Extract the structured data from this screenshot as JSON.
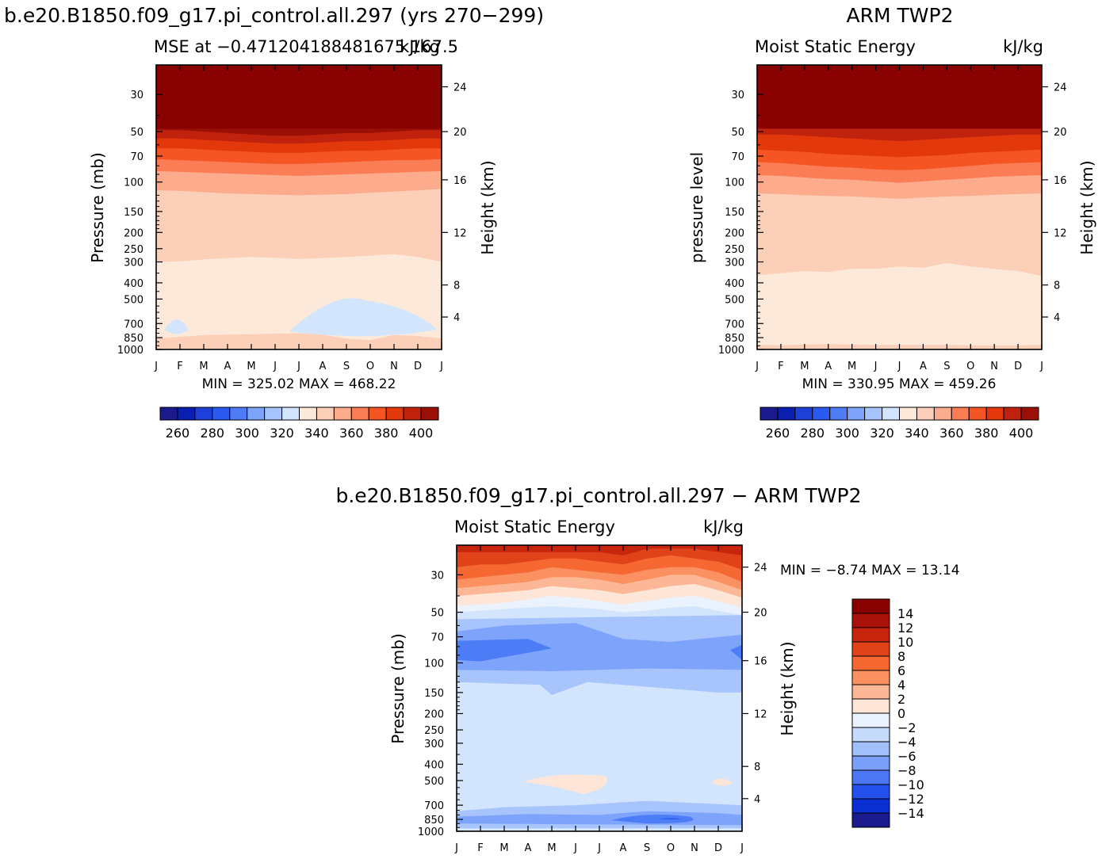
{
  "chart_data": [
    {
      "type": "heatmap",
      "title": "b.e20.B1850.f09_g17.pi_control.all.297 (yrs 270−299)",
      "subtitle_left": "MSE at −0.471204188481675 167.5",
      "subtitle_right": "kJ/kg",
      "ylabel": "Pressure (mb)",
      "ylabel_right": "Height (km)",
      "x_ticks": [
        "J",
        "F",
        "M",
        "A",
        "M",
        "J",
        "J",
        "A",
        "S",
        "O",
        "N",
        "D",
        "J"
      ],
      "y_ticks": [
        "30",
        "50",
        "70",
        "100",
        "150",
        "200",
        "250",
        "300",
        "400",
        "500",
        "700",
        "850",
        "1000"
      ],
      "y_ticks_right": [
        "24",
        "20",
        "16",
        "12",
        "8",
        "4"
      ],
      "minmax": "MIN = 325.02  MAX = 468.22",
      "colorbar_labels": [
        "260",
        "280",
        "300",
        "320",
        "340",
        "360",
        "380",
        "400"
      ],
      "ylim": [
        1000,
        20
      ],
      "contour_levels": [
        250,
        260,
        270,
        280,
        290,
        300,
        310,
        320,
        330,
        340,
        350,
        360,
        370,
        380,
        390,
        400
      ],
      "bands_by_month": [
        {
          "level": 330,
          "boundary_mb": [
            860,
            840,
            820,
            815,
            810,
            805,
            800,
            815,
            860,
            880,
            820,
            830,
            860
          ]
        },
        {
          "level": 340,
          "boundary_mb": [
            300,
            298,
            290,
            285,
            280,
            283,
            288,
            285,
            280,
            275,
            270,
            280,
            300
          ]
        },
        {
          "level": 350,
          "boundary_mb": [
            112,
            113,
            115,
            117,
            118,
            119,
            120,
            119,
            118,
            116,
            114,
            112,
            110
          ]
        },
        {
          "level": 360,
          "boundary_mb": [
            86,
            87,
            88,
            89,
            90,
            91,
            92,
            91,
            90,
            89,
            88,
            87,
            86
          ]
        },
        {
          "level": 370,
          "boundary_mb": [
            73,
            74,
            75,
            76,
            77,
            78,
            78,
            77,
            76,
            75,
            74,
            74,
            73
          ]
        },
        {
          "level": 380,
          "boundary_mb": [
            63,
            63,
            64,
            65,
            66,
            67,
            67,
            66,
            65,
            65,
            64,
            63,
            63
          ]
        },
        {
          "level": 390,
          "boundary_mb": [
            55,
            55,
            56,
            57,
            58,
            59,
            59,
            58,
            57,
            57,
            56,
            55,
            55
          ]
        },
        {
          "level": 400,
          "boundary_mb": [
            49,
            49,
            50,
            51,
            52,
            53,
            53,
            52,
            51,
            51,
            50,
            49,
            49
          ]
        }
      ]
    },
    {
      "type": "heatmap",
      "title": "ARM TWP2",
      "subtitle_left": "Moist Static Energy",
      "subtitle_right": "kJ/kg",
      "ylabel": "pressure level",
      "ylabel_right": "Height (km)",
      "x_ticks": [
        "J",
        "F",
        "M",
        "A",
        "M",
        "J",
        "J",
        "A",
        "S",
        "O",
        "N",
        "D",
        "J"
      ],
      "y_ticks": [
        "30",
        "50",
        "70",
        "100",
        "150",
        "200",
        "250",
        "300",
        "400",
        "500",
        "700",
        "850",
        "1000"
      ],
      "y_ticks_right": [
        "24",
        "20",
        "16",
        "12",
        "8",
        "4"
      ],
      "minmax": "MIN = 330.95  MAX = 459.26",
      "colorbar_labels": [
        "260",
        "280",
        "300",
        "320",
        "340",
        "360",
        "380",
        "400"
      ],
      "ylim": [
        1000,
        20
      ],
      "contour_levels": [
        250,
        260,
        270,
        280,
        290,
        300,
        310,
        320,
        330,
        340,
        350,
        360,
        370,
        380,
        390,
        400
      ],
      "bands_by_month": [
        {
          "level": 340,
          "boundary_mb": [
            940,
            945,
            935,
            930,
            935,
            940,
            940,
            940,
            940,
            945,
            945,
            945,
            940
          ]
        },
        {
          "level": 350,
          "boundary_mb": [
            360,
            350,
            340,
            345,
            330,
            330,
            320,
            325,
            305,
            320,
            330,
            340,
            365
          ]
        },
        {
          "level": 360,
          "boundary_mb": [
            117,
            118,
            120,
            121,
            122,
            124,
            126,
            124,
            122,
            121,
            119,
            118,
            117
          ]
        },
        {
          "level": 370,
          "boundary_mb": [
            91,
            92,
            94,
            96,
            97,
            99,
            101,
            99,
            97,
            95,
            93,
            92,
            91
          ]
        },
        {
          "level": 380,
          "boundary_mb": [
            76,
            77,
            79,
            81,
            82,
            84,
            85,
            84,
            82,
            80,
            78,
            77,
            76
          ]
        },
        {
          "level": 390,
          "boundary_mb": [
            64,
            65,
            66,
            68,
            69,
            70,
            71,
            70,
            69,
            67,
            66,
            65,
            64
          ]
        },
        {
          "level": 400,
          "boundary_mb": [
            52,
            52,
            53,
            54,
            55,
            56,
            57,
            56,
            55,
            54,
            53,
            52,
            52
          ]
        }
      ]
    },
    {
      "type": "heatmap",
      "title": "b.e20.B1850.f09_g17.pi_control.all.297 − ARM TWP2",
      "subtitle_left": "Moist Static Energy",
      "subtitle_right": "kJ/kg",
      "ylabel": "Pressure (mb)",
      "ylabel_right": "Height (km)",
      "x_ticks": [
        "J",
        "F",
        "M",
        "A",
        "M",
        "J",
        "J",
        "A",
        "S",
        "O",
        "N",
        "D",
        "J"
      ],
      "y_ticks": [
        "30",
        "50",
        "70",
        "100",
        "150",
        "200",
        "250",
        "300",
        "400",
        "500",
        "700",
        "850",
        "1000"
      ],
      "y_ticks_right": [
        "24",
        "20",
        "16",
        "12",
        "8",
        "4"
      ],
      "minmax": "MIN =   −8.74  MAX =   13.14",
      "colorbar_labels": [
        "14",
        "12",
        "10",
        "8",
        "6",
        "4",
        "2",
        "0",
        "−2",
        "−4",
        "−6",
        "−8",
        "−10",
        "−12",
        "−14"
      ],
      "ylim": [
        1000,
        20
      ],
      "contour_levels": [
        -15,
        -14,
        -12,
        -10,
        -8,
        -6,
        -4,
        -2,
        0,
        2,
        4,
        6,
        8,
        10,
        12,
        14
      ]
    }
  ],
  "colors": {
    "blue_scale": [
      "#1a1a8c",
      "#0a1fb0",
      "#1f40d8",
      "#2a5af0",
      "#4d7cf7",
      "#7ea3fb",
      "#a8c4fd",
      "#d2e5fc"
    ],
    "red_scale": [
      "#fde9d9",
      "#fcd0b8",
      "#fcab8c",
      "#fb7d55",
      "#f55523",
      "#e3380b",
      "#c0220e",
      "#9a1007",
      "#880000"
    ],
    "panel3_cb": [
      "#880000",
      "#a81208",
      "#c8250e",
      "#e0421a",
      "#f66832",
      "#fb9060",
      "#fcb896",
      "#fde6d8",
      "#e9f2fd",
      "#c7dcfc",
      "#a0bffb",
      "#7a9ff8",
      "#4c76f4",
      "#2451ec",
      "#0a2fd2",
      "#1a1a8c"
    ]
  }
}
